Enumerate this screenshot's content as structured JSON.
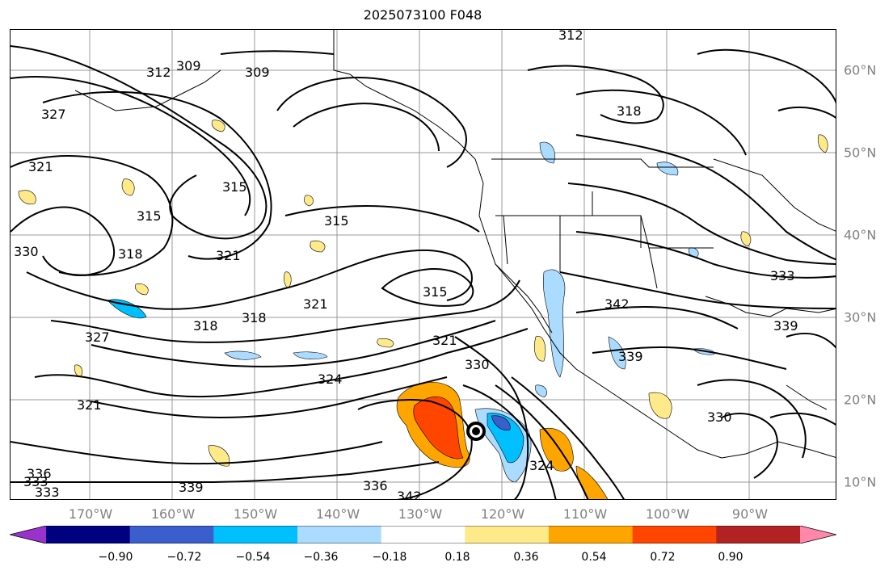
{
  "title": "2025073100 F048",
  "lat_labels": [
    "60°N",
    "50°N",
    "40°N",
    "30°N",
    "20°N",
    "10°N"
  ],
  "lon_labels": [
    "170°W",
    "160°W",
    "150°W",
    "140°W",
    "130°W",
    "120°W",
    "110°W",
    "100°W",
    "90°W"
  ],
  "colorbar": {
    "colors": [
      "#9933cc",
      "#000080",
      "#3a5fcd",
      "#00bfff",
      "#abdbff",
      "#ffffff",
      "#ffea8a",
      "#ffa500",
      "#ff4500",
      "#b22222",
      "#ff88aa"
    ],
    "ticks": [
      "−0.90",
      "−0.72",
      "−0.54",
      "−0.36",
      "−0.18",
      "0.18",
      "0.36",
      "0.54",
      "0.72",
      "0.90"
    ]
  },
  "contour_labels": [
    "312",
    "315",
    "309",
    "318",
    "327",
    "321",
    "324",
    "330",
    "336",
    "333",
    "339",
    "342",
    "315",
    "318",
    "321",
    "309",
    "312",
    "318",
    "315",
    "321",
    "318",
    "327",
    "330",
    "333",
    "339",
    "342",
    "321",
    "324",
    "330",
    "333",
    "336",
    "339",
    "321",
    "315"
  ]
}
